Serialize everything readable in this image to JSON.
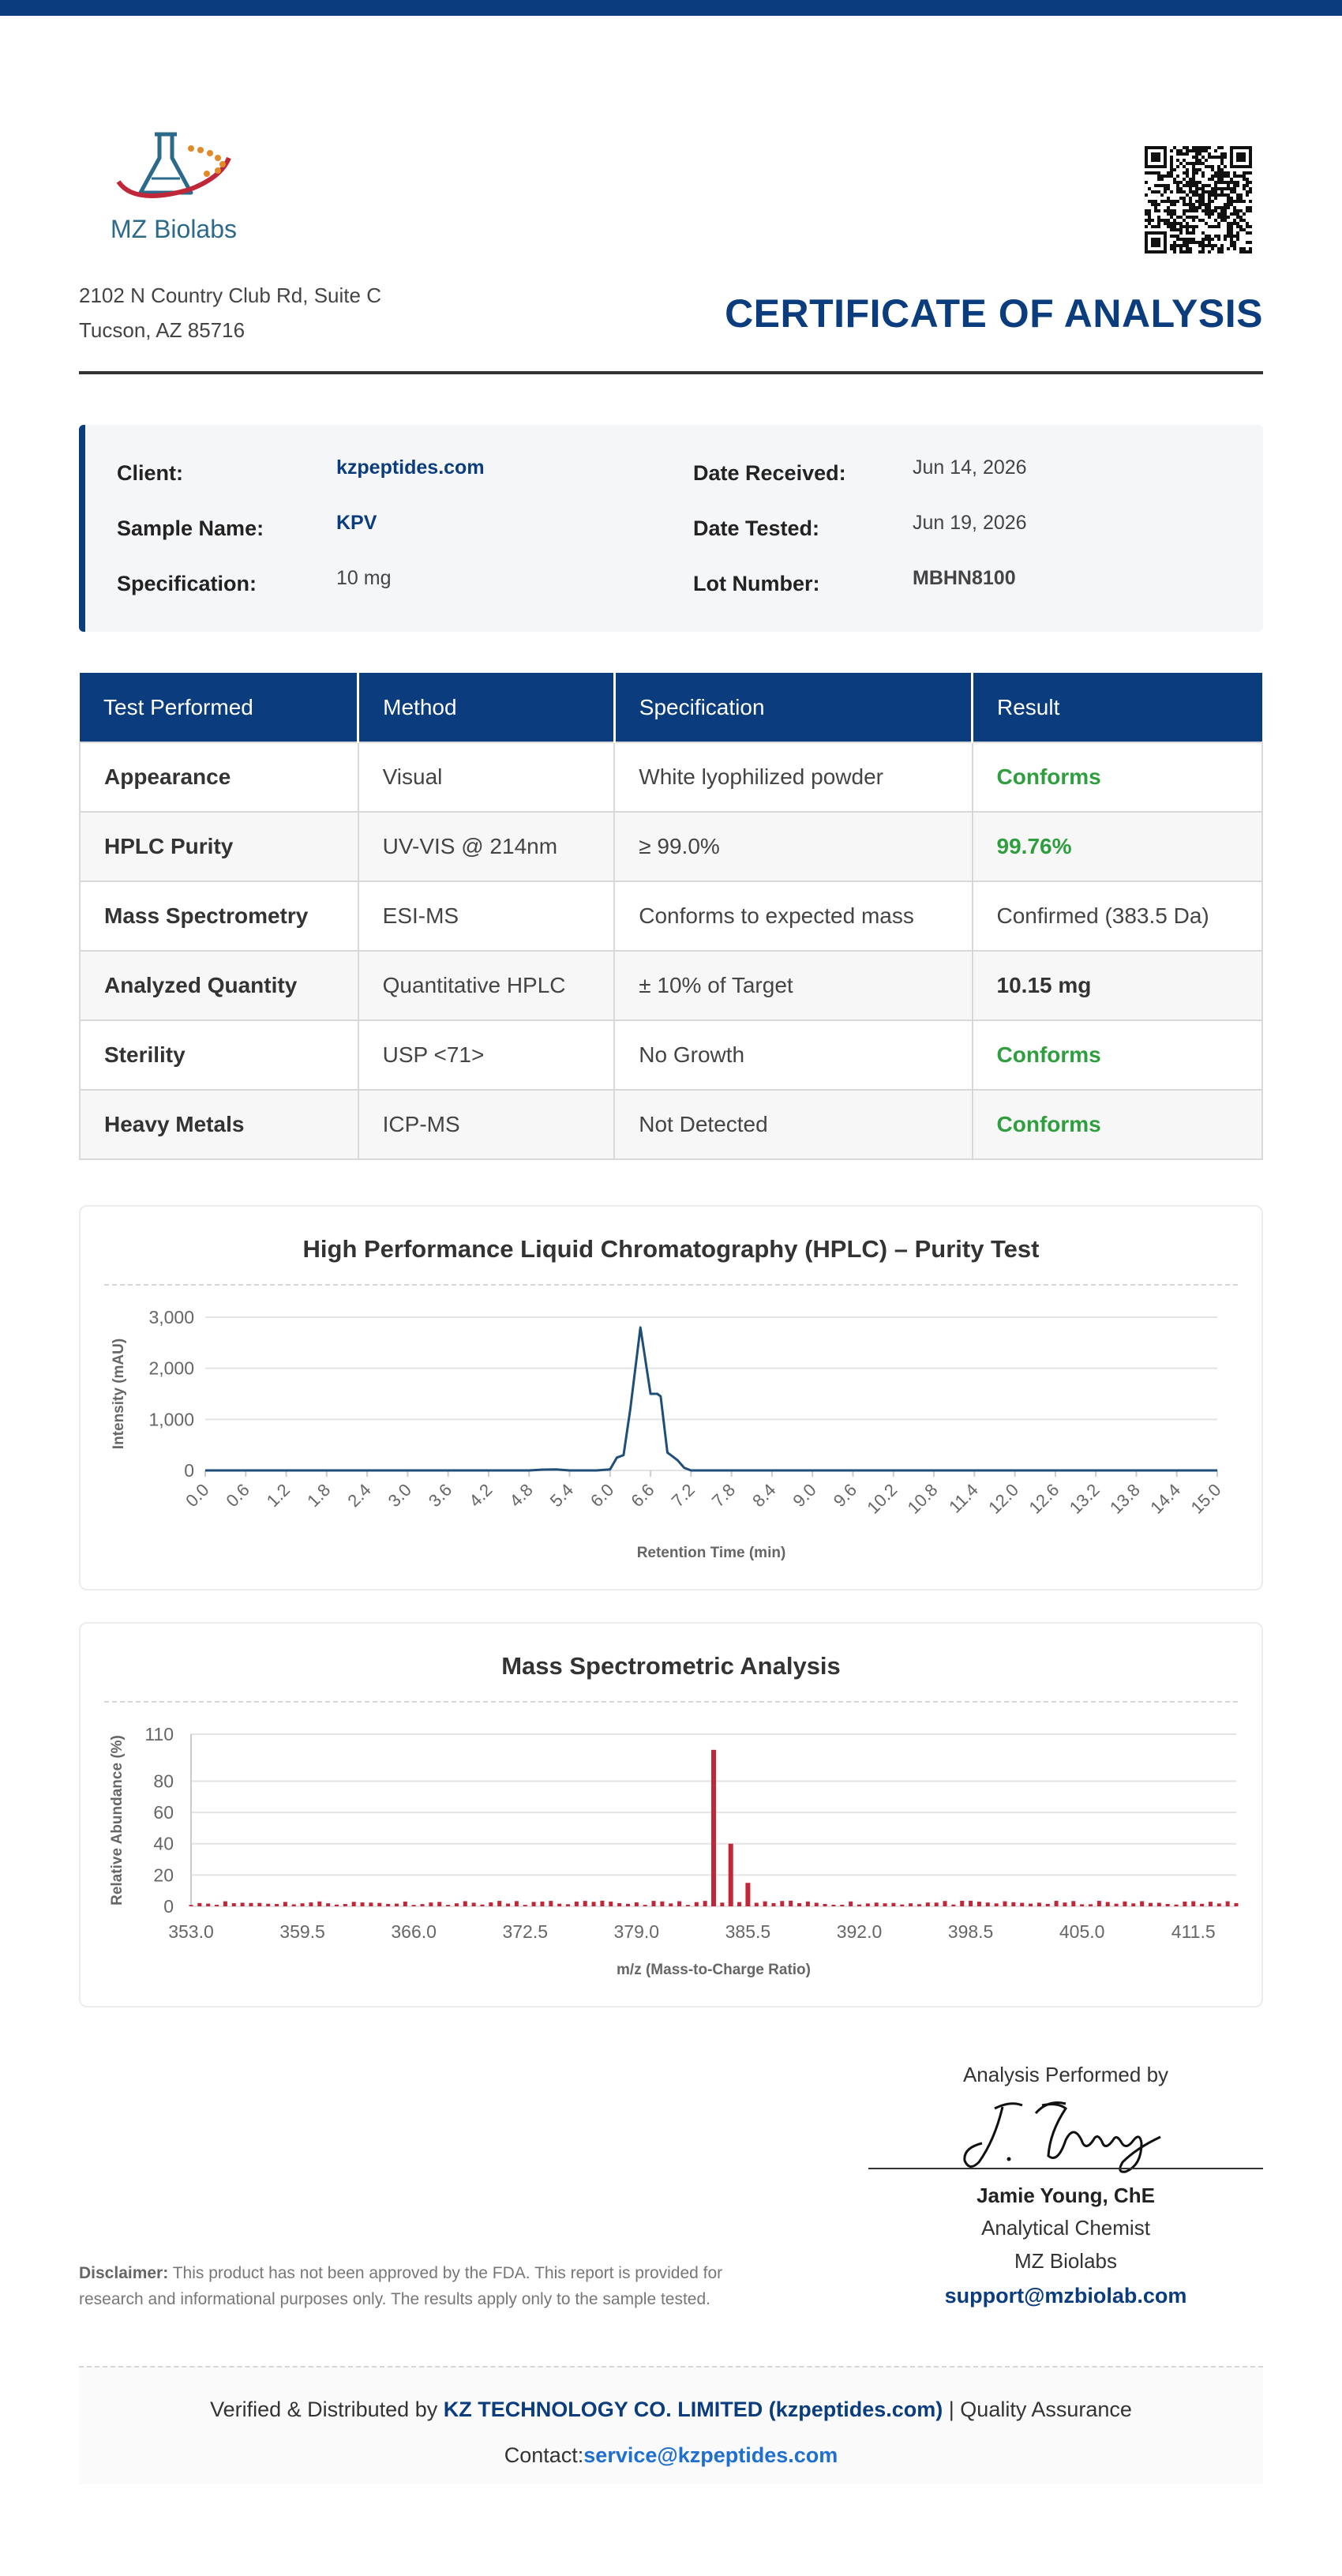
{
  "header": {
    "company_name": "MZ Biolabs",
    "address_line1": "2102 N Country Club Rd, Suite C",
    "address_line2": "Tucson, AZ 85716",
    "title": "CERTIFICATE OF ANALYSIS",
    "logo_icon": "flask-logo-icon",
    "qr_icon": "qr-code-icon"
  },
  "info": {
    "client_label": "Client:",
    "client_value": "kzpeptides.com",
    "sample_label": "Sample Name:",
    "sample_value": "KPV",
    "spec_label": "Specification:",
    "spec_value": "10 mg",
    "received_label": "Date Received:",
    "received_value": "Jun 14, 2026",
    "tested_label": "Date Tested:",
    "tested_value": "Jun 19, 2026",
    "lot_label": "Lot Number:",
    "lot_value": "MBHN8100"
  },
  "results": {
    "headers": [
      "Test Performed",
      "Method",
      "Specification",
      "Result"
    ],
    "rows": [
      {
        "test": "Appearance",
        "method": "Visual",
        "spec": "White lyophilized powder",
        "result": "Conforms"
      },
      {
        "test": "HPLC Purity",
        "method": "UV-VIS @ 214nm",
        "spec": "≥ 99.0%",
        "result": "99.76%"
      },
      {
        "test": "Mass Spectrometry",
        "method": "ESI-MS",
        "spec": "Conforms to expected mass",
        "result": "Confirmed (383.5 Da)"
      },
      {
        "test": "Analyzed Quantity",
        "method": "Quantitative HPLC",
        "spec": "± 10% of Target",
        "result": "10.15 mg"
      },
      {
        "test": "Sterility",
        "method": "USP <71>",
        "spec": "No Growth",
        "result": "Conforms"
      },
      {
        "test": "Heavy Metals",
        "method": "ICP-MS",
        "spec": "Not Detected",
        "result": "Conforms"
      }
    ]
  },
  "colors": {
    "brand": "#0b3d7e",
    "pass": "#2e9e3e",
    "hplc_line": "#1f4e79",
    "ms_bar": "#c0283a"
  },
  "chart_data": [
    {
      "type": "line",
      "title": "High Performance Liquid Chromatography (HPLC) – Purity Test",
      "xlabel": "Retention Time (min)",
      "ylabel": "Intensity (mAU)",
      "xlim": [
        0,
        15
      ],
      "ylim": [
        0,
        3000
      ],
      "yticks": [
        0,
        1000,
        2000,
        3000
      ],
      "ytick_labels": [
        "0",
        "1,000",
        "2,000",
        "3,000"
      ],
      "xtick_labels": [
        "0.0",
        "0.6",
        "1.2",
        "1.8",
        "2.4",
        "3.0",
        "3.6",
        "4.2",
        "4.8",
        "5.4",
        "6.0",
        "6.6",
        "7.2",
        "7.8",
        "8.4",
        "9.0",
        "9.6",
        "10.2",
        "10.8",
        "11.4",
        "12.0",
        "12.6",
        "13.2",
        "13.8",
        "14.4",
        "15.0"
      ],
      "grid": true,
      "series": [
        {
          "x": [
            0,
            4.8,
            5.0,
            5.2,
            5.4,
            5.8,
            6.0,
            6.1,
            6.2,
            6.3,
            6.45,
            6.6,
            6.7,
            6.75,
            6.85,
            6.9,
            7.0,
            7.1,
            7.2,
            7.4,
            8.0,
            15.0
          ],
          "y": [
            0,
            0,
            15,
            20,
            0,
            0,
            20,
            250,
            300,
            1200,
            2800,
            1500,
            1500,
            1450,
            350,
            300,
            200,
            50,
            0,
            0,
            0,
            0
          ]
        }
      ]
    },
    {
      "type": "bar",
      "title": "Mass Spectrometric Analysis",
      "xlabel": "m/z (Mass-to-Charge Ratio)",
      "ylabel": "Relative Abundance (%)",
      "xlim": [
        353,
        414
      ],
      "ylim": [
        0,
        110
      ],
      "yticks": [
        0,
        20,
        40,
        60,
        80,
        110
      ],
      "xtick_labels": [
        "353.0",
        "359.5",
        "366.0",
        "372.5",
        "379.0",
        "385.5",
        "392.0",
        "398.5",
        "405.0",
        "411.5"
      ],
      "grid": true,
      "peaks": [
        {
          "mz": 383.5,
          "abundance": 100
        },
        {
          "mz": 384.5,
          "abundance": 40
        },
        {
          "mz": 385.5,
          "abundance": 15
        }
      ],
      "noise_level": 3
    }
  ],
  "signature": {
    "heading": "Analysis Performed by",
    "signature_icon": "handwritten-signature-icon",
    "name": "Jamie Young, ChE",
    "role": "Analytical Chemist",
    "org": "MZ Biolabs",
    "email": "support@mzbiolab.com"
  },
  "disclaimer": {
    "label": "Disclaimer:",
    "text": " This product has not been approved by the FDA. This report is provided for research and informational purposes only. The results apply only to the sample tested."
  },
  "footer": {
    "prefix": "Verified & Distributed by ",
    "company": "KZ TECHNOLOGY CO. LIMITED (kzpeptides.com)",
    "suffix": " | Quality Assurance",
    "contact_label": "Contact:",
    "contact_email": "service@kzpeptides.com"
  }
}
